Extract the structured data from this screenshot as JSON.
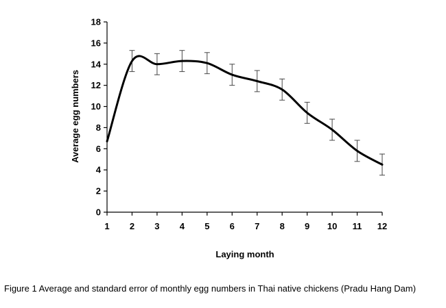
{
  "chart_data": {
    "type": "line",
    "xlabel": "Laying month",
    "ylabel": "Average egg numbers",
    "xlim": [
      1,
      12
    ],
    "ylim": [
      0,
      18
    ],
    "x": [
      1,
      2,
      3,
      4,
      5,
      6,
      7,
      8,
      9,
      10,
      11,
      12
    ],
    "x_ticks": [
      "1",
      "2",
      "3",
      "4",
      "5",
      "6",
      "7",
      "8",
      "9",
      "10",
      "11",
      "12"
    ],
    "y_ticks": [
      "0",
      "2",
      "4",
      "6",
      "8",
      "10",
      "12",
      "14",
      "16",
      "18"
    ],
    "series": [
      {
        "values": [
          6.7,
          14.3,
          14.0,
          14.3,
          14.1,
          13.0,
          12.4,
          11.6,
          9.4,
          7.8,
          5.8,
          4.5
        ],
        "error": [
          0,
          1.0,
          1.0,
          1.0,
          1.0,
          1.0,
          1.0,
          1.0,
          1.0,
          1.0,
          1.0,
          1.0
        ]
      }
    ],
    "grid": false,
    "legend": "none",
    "line_color": "#000000"
  },
  "caption": {
    "label": "Figure 1",
    "text": "Average and standard error of monthly egg numbers in Thai native chickens (Pradu Hang Dam)"
  }
}
